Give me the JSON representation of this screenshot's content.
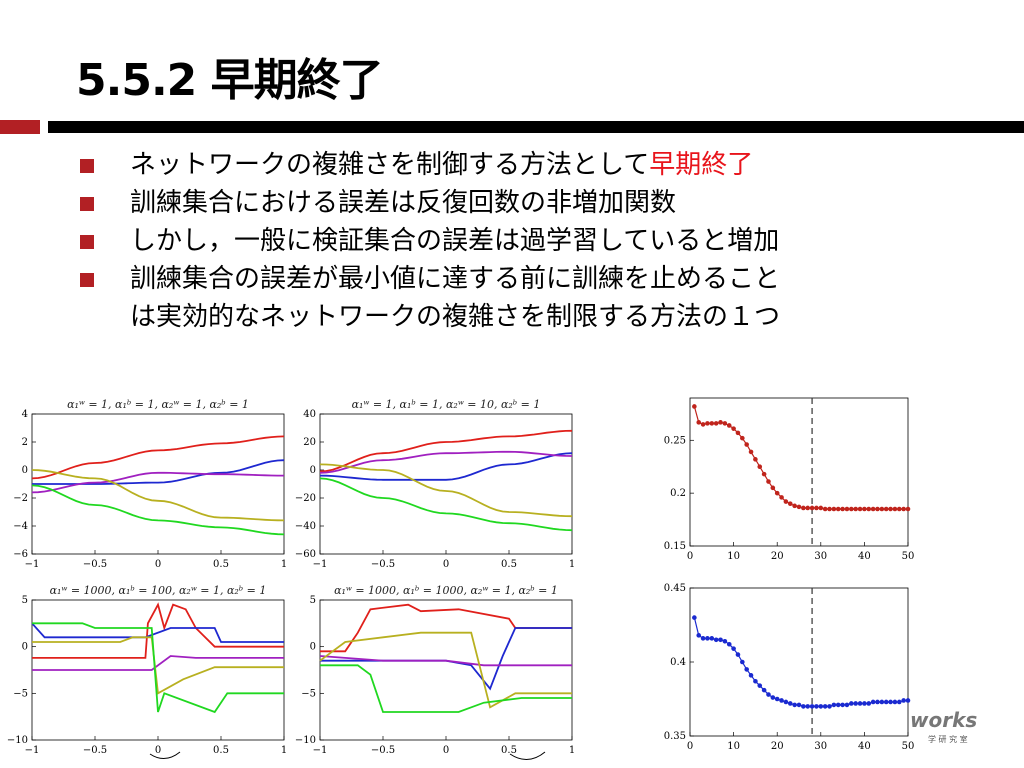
{
  "slide": {
    "title": "5.5.2 早期終了",
    "bullets": [
      {
        "text": "ネットワークの複雑さを制御する方法として",
        "highlight": "早期終了",
        "highlight_color": "#e8141b"
      },
      {
        "text": "訓練集合における誤差は反復回数の非増加関数"
      },
      {
        "text": "しかし，一般に検証集合の誤差は過学習していると増加"
      },
      {
        "text": "訓練集合の誤差が最小値に達する前に訓練を止めること"
      },
      {
        "text": "は実効的なネットワークの複雑さを制限する方法の１つ",
        "continuation": true
      }
    ],
    "accent_color": "#b22024",
    "logo_text": "works",
    "logo_subtext": "学 研 究 室"
  },
  "chart_data": [
    {
      "type": "line",
      "title": "α₁ʷ = 1, α₁ᵇ = 1, α₂ʷ = 1, α₂ᵇ = 1",
      "x": [
        -1,
        -0.5,
        0,
        0.5,
        1
      ],
      "xticks": [
        "−1",
        "−0.5",
        "0",
        "0.5",
        "1"
      ],
      "ylim": [
        -6,
        4
      ],
      "yticks": [
        "−6",
        "−4",
        "−2",
        "0",
        "2",
        "4"
      ],
      "series": [
        {
          "color": "#e0201b",
          "values": [
            -0.6,
            0.5,
            1.4,
            1.9,
            2.4
          ]
        },
        {
          "color": "#1e28d0",
          "values": [
            -1.0,
            -1.0,
            -0.9,
            -0.2,
            0.7
          ]
        },
        {
          "color": "#a020c0",
          "values": [
            -1.6,
            -0.9,
            -0.2,
            -0.3,
            -0.4
          ]
        },
        {
          "color": "#b8b020",
          "values": [
            0.0,
            -0.6,
            -2.2,
            -3.4,
            -3.6
          ]
        },
        {
          "color": "#20d820",
          "values": [
            -1.1,
            -2.5,
            -3.6,
            -4.1,
            -4.6
          ]
        }
      ]
    },
    {
      "type": "line",
      "title": "α₁ʷ = 1, α₁ᵇ = 1, α₂ʷ = 10, α₂ᵇ = 1",
      "x": [
        -1,
        -0.5,
        0,
        0.5,
        1
      ],
      "xticks": [
        "−1",
        "−0.5",
        "0",
        "0.5",
        "1"
      ],
      "ylim": [
        -60,
        40
      ],
      "yticks": [
        "−60",
        "−40",
        "−20",
        "0",
        "20",
        "40"
      ],
      "series": [
        {
          "color": "#e0201b",
          "values": [
            -1,
            12,
            20,
            24,
            28
          ]
        },
        {
          "color": "#1e28d0",
          "values": [
            -4,
            -7,
            -7,
            4,
            12
          ]
        },
        {
          "color": "#a020c0",
          "values": [
            -2,
            7,
            12,
            13,
            10
          ]
        },
        {
          "color": "#b8b020",
          "values": [
            4,
            0,
            -15,
            -30,
            -33
          ]
        },
        {
          "color": "#20d820",
          "values": [
            -6,
            -20,
            -31,
            -38,
            -43
          ]
        }
      ]
    },
    {
      "type": "line",
      "title": "α₁ʷ = 1000, α₁ᵇ = 100, α₂ʷ = 1, α₂ᵇ = 1",
      "xticks": [
        "−1",
        "−0.5",
        "0",
        "0.5",
        "1"
      ],
      "ylim": [
        -10,
        5
      ],
      "yticks": [
        "−10",
        "−5",
        "0",
        "5"
      ],
      "series": [
        {
          "color": "#e0201b",
          "x": [
            -1,
            -0.1,
            -0.08,
            0.0,
            0.05,
            0.12,
            0.22,
            0.3,
            0.45,
            1
          ],
          "values": [
            -1.2,
            -1.2,
            2.5,
            4.5,
            2.0,
            4.5,
            4.0,
            2.0,
            0,
            0
          ]
        },
        {
          "color": "#1e28d0",
          "x": [
            -1,
            -0.9,
            -0.8,
            -0.1,
            0.1,
            0.45,
            0.5,
            1
          ],
          "values": [
            2.5,
            1.0,
            1.0,
            1.0,
            2.0,
            2.0,
            0.5,
            0.5
          ]
        },
        {
          "color": "#a020c0",
          "x": [
            -1,
            -0.15,
            -0.05,
            0.1,
            0.3,
            1
          ],
          "values": [
            -2.5,
            -2.5,
            -2.5,
            -1.0,
            -1.2,
            -1.2
          ]
        },
        {
          "color": "#b8b020",
          "x": [
            -1,
            -0.3,
            -0.2,
            -0.05,
            0.0,
            0.2,
            0.45,
            1
          ],
          "values": [
            0.5,
            0.5,
            1.0,
            1.0,
            -5.0,
            -3.5,
            -2.2,
            -2.2
          ]
        },
        {
          "color": "#20d820",
          "x": [
            -1,
            -0.6,
            -0.5,
            -0.05,
            0.0,
            0.05,
            0.45,
            0.55,
            1
          ],
          "values": [
            2.5,
            2.5,
            2.0,
            2.0,
            -7.0,
            -5.0,
            -7.0,
            -5.0,
            -5.0
          ]
        }
      ]
    },
    {
      "type": "line",
      "title": "α₁ʷ = 1000, α₁ᵇ = 1000, α₂ʷ = 1, α₂ᵇ = 1",
      "xticks": [
        "−1",
        "−0.5",
        "0",
        "0.5",
        "1"
      ],
      "ylim": [
        -10,
        5
      ],
      "yticks": [
        "−10",
        "−5",
        "0",
        "5"
      ],
      "series": [
        {
          "color": "#e0201b",
          "x": [
            -1,
            -0.8,
            -0.7,
            -0.6,
            -0.3,
            -0.2,
            0.1,
            0.5,
            0.55,
            1
          ],
          "values": [
            -0.5,
            -0.5,
            1.5,
            4.0,
            4.5,
            3.8,
            4.0,
            3.0,
            2.0,
            2.0
          ]
        },
        {
          "color": "#1e28d0",
          "x": [
            -1,
            0.0,
            0.2,
            0.35,
            0.45,
            0.55,
            1
          ],
          "values": [
            -1.5,
            -1.5,
            -2.0,
            -4.5,
            -1.0,
            2.0,
            2.0
          ]
        },
        {
          "color": "#a020c0",
          "x": [
            -1,
            -0.5,
            0.0,
            0.3,
            0.55,
            1
          ],
          "values": [
            -1.0,
            -1.5,
            -1.5,
            -2.0,
            -2.0,
            -2.0
          ]
        },
        {
          "color": "#b8b020",
          "x": [
            -1,
            -0.8,
            -0.5,
            -0.2,
            0.2,
            0.35,
            0.55,
            1
          ],
          "values": [
            -1.5,
            0.5,
            1.0,
            1.5,
            1.5,
            -6.5,
            -5.0,
            -5.0
          ]
        },
        {
          "color": "#20d820",
          "x": [
            -1,
            -0.7,
            -0.6,
            -0.5,
            0.1,
            0.3,
            0.6,
            1
          ],
          "values": [
            -2.0,
            -2.0,
            -3.0,
            -7.0,
            -7.0,
            -6.0,
            -5.5,
            -5.5
          ]
        }
      ]
    },
    {
      "type": "scatter",
      "series": [
        {
          "color": "#c0241c",
          "style": "line-markers"
        }
      ],
      "x": [
        1,
        2,
        3,
        4,
        5,
        6,
        7,
        8,
        9,
        10,
        11,
        12,
        13,
        14,
        15,
        16,
        17,
        18,
        19,
        20,
        21,
        22,
        23,
        24,
        25,
        26,
        27,
        28,
        29,
        30,
        31,
        32,
        33,
        34,
        35,
        36,
        37,
        38,
        39,
        40,
        41,
        42,
        43,
        44,
        45,
        46,
        47,
        48,
        49,
        50
      ],
      "values": [
        0.282,
        0.267,
        0.265,
        0.266,
        0.266,
        0.266,
        0.267,
        0.266,
        0.264,
        0.261,
        0.257,
        0.252,
        0.246,
        0.239,
        0.232,
        0.225,
        0.218,
        0.211,
        0.205,
        0.2,
        0.196,
        0.192,
        0.19,
        0.188,
        0.187,
        0.186,
        0.186,
        0.186,
        0.186,
        0.186,
        0.185,
        0.185,
        0.185,
        0.185,
        0.185,
        0.185,
        0.185,
        0.185,
        0.185,
        0.185,
        0.185,
        0.185,
        0.185,
        0.185,
        0.185,
        0.185,
        0.185,
        0.185,
        0.185,
        0.185
      ],
      "xlim": [
        0,
        50
      ],
      "ylim": [
        0.15,
        0.29
      ],
      "xticks": [
        "0",
        "10",
        "20",
        "30",
        "40",
        "50"
      ],
      "yticks": [
        "0.15",
        "0.2",
        "0.25"
      ],
      "vline_x": 28
    },
    {
      "type": "scatter",
      "series": [
        {
          "color": "#1a2ad0",
          "style": "line-markers"
        }
      ],
      "x": [
        1,
        2,
        3,
        4,
        5,
        6,
        7,
        8,
        9,
        10,
        11,
        12,
        13,
        14,
        15,
        16,
        17,
        18,
        19,
        20,
        21,
        22,
        23,
        24,
        25,
        26,
        27,
        28,
        29,
        30,
        31,
        32,
        33,
        34,
        35,
        36,
        37,
        38,
        39,
        40,
        41,
        42,
        43,
        44,
        45,
        46,
        47,
        48,
        49,
        50
      ],
      "values": [
        0.43,
        0.418,
        0.416,
        0.416,
        0.416,
        0.415,
        0.415,
        0.414,
        0.412,
        0.409,
        0.405,
        0.4,
        0.395,
        0.391,
        0.387,
        0.384,
        0.381,
        0.378,
        0.376,
        0.375,
        0.374,
        0.373,
        0.372,
        0.371,
        0.371,
        0.37,
        0.37,
        0.37,
        0.37,
        0.37,
        0.37,
        0.37,
        0.371,
        0.371,
        0.371,
        0.371,
        0.372,
        0.372,
        0.372,
        0.372,
        0.372,
        0.373,
        0.373,
        0.373,
        0.373,
        0.373,
        0.373,
        0.373,
        0.374,
        0.374
      ],
      "xlim": [
        0,
        50
      ],
      "ylim": [
        0.35,
        0.45
      ],
      "xticks": [
        "0",
        "10",
        "20",
        "30",
        "40",
        "50"
      ],
      "yticks": [
        "0.35",
        "0.4",
        "0.45"
      ],
      "vline_x": 28
    }
  ]
}
